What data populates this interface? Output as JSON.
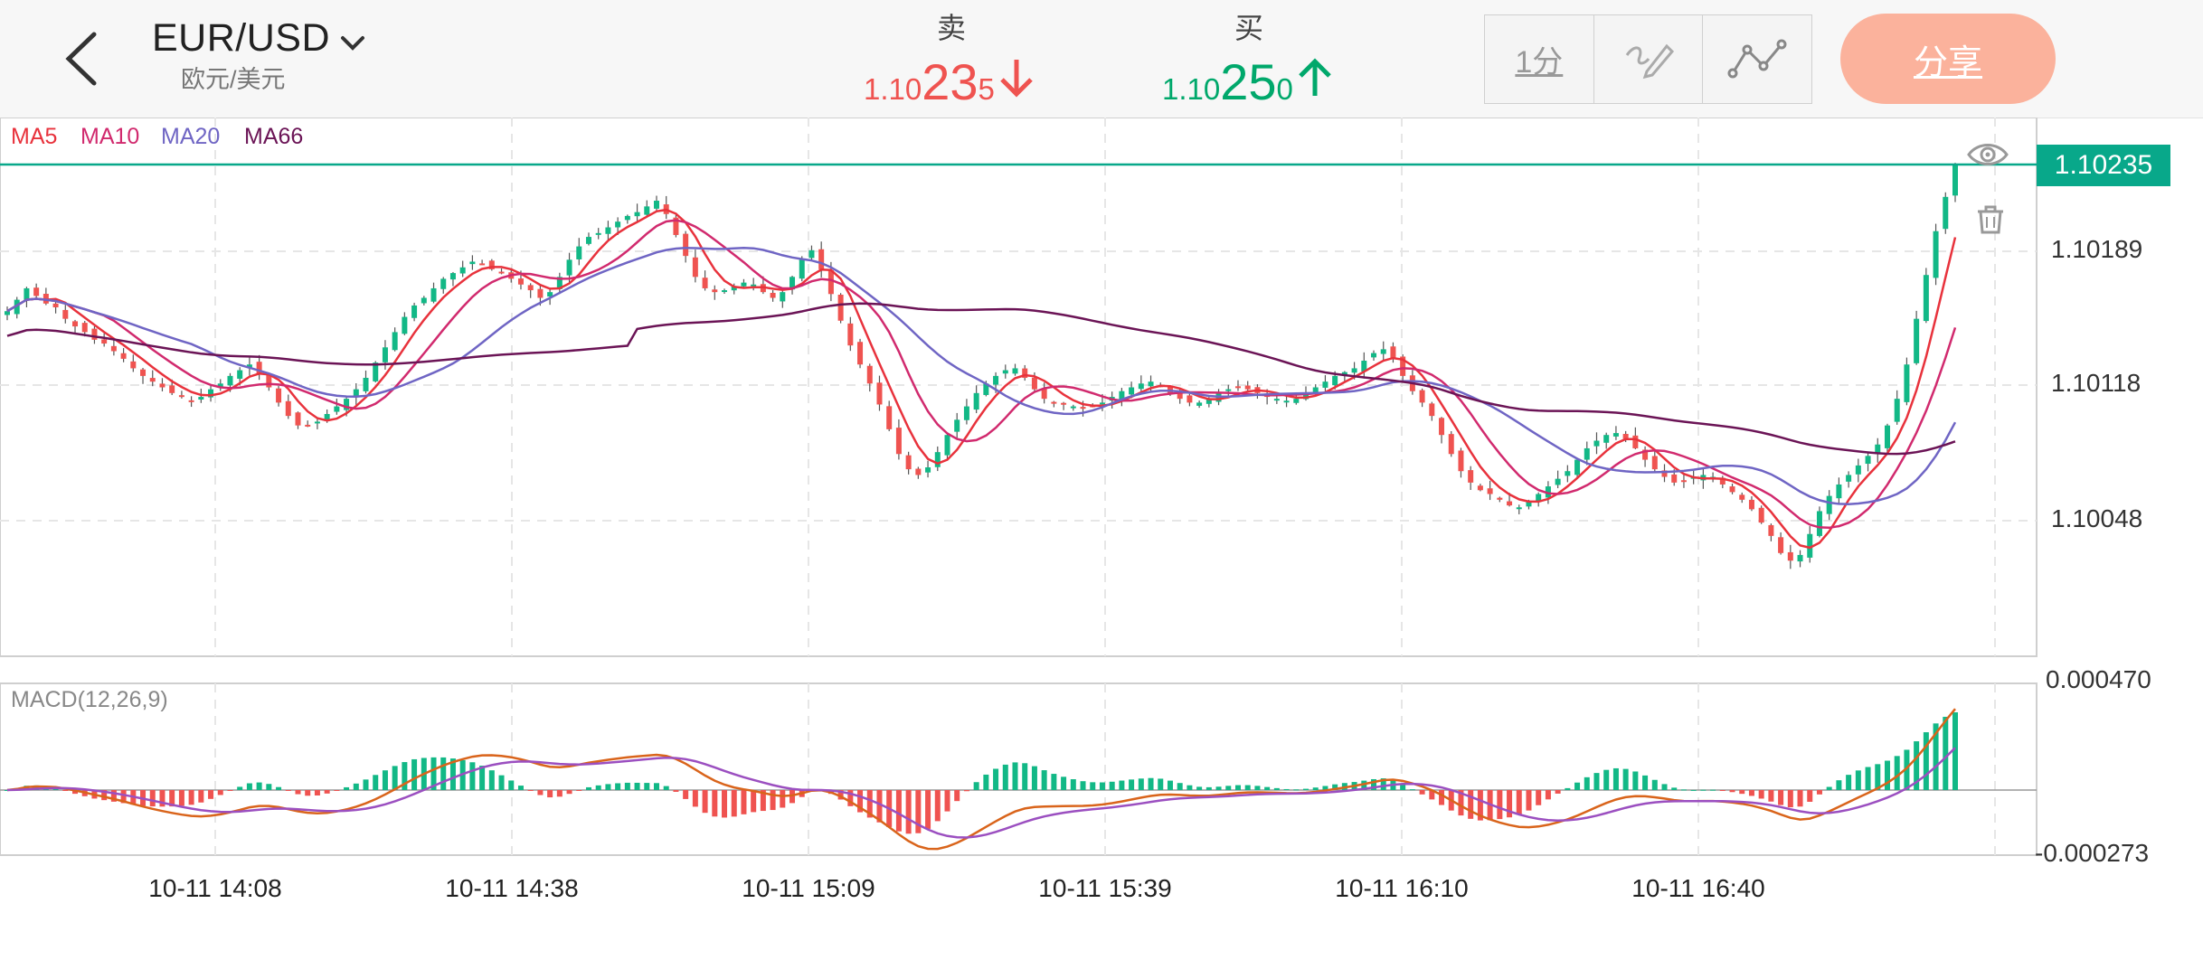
{
  "header": {
    "pair": "EUR/USD",
    "pair_sub": "欧元/美元",
    "sell_label": "卖",
    "buy_label": "买",
    "sell": {
      "small": "1.10",
      "big": "23",
      "tail": "5"
    },
    "buy": {
      "small": "1.10",
      "big": "25",
      "tail": "0"
    },
    "timeframe": "1分",
    "share": "分享"
  },
  "colors": {
    "up": "#12b886",
    "down": "#ef5350",
    "ma5": "#e8323c",
    "ma10": "#d12a6e",
    "ma20": "#6f65c4",
    "ma66": "#6b1456",
    "macd_line": "#d9641b",
    "signal_line": "#9b4fc0",
    "price_line": "#08a88a",
    "share": "#fbb29c"
  },
  "chart_data": {
    "type": "candlestick",
    "instrument": "EUR/USD",
    "interval": "1分",
    "legend": [
      "MA5",
      "MA10",
      "MA20",
      "MA66"
    ],
    "current_price": "1.10235",
    "y_ticks": [
      "1.10189",
      "1.10118",
      "1.10048"
    ],
    "ylim": [
      1.0997,
      1.1026
    ],
    "x_ticks": [
      "10-11 14:08",
      "10-11 14:38",
      "10-11 15:09",
      "10-11 15:39",
      "10-11 16:10",
      "10-11 16:40"
    ],
    "candle_count": 200,
    "close": [
      1.10158,
      1.10164,
      1.1017,
      1.10166,
      1.10162,
      1.1016,
      1.10154,
      1.1015,
      1.10147,
      1.10143,
      1.10141,
      1.10137,
      1.10133,
      1.10128,
      1.10124,
      1.10121,
      1.10118,
      1.10115,
      1.10113,
      1.10111,
      1.10113,
      1.10117,
      1.1012,
      1.10124,
      1.10127,
      1.1013,
      1.10125,
      1.10118,
      1.1011,
      1.10103,
      1.10098,
      1.10098,
      1.101,
      1.10104,
      1.10108,
      1.10112,
      1.10117,
      1.10123,
      1.10131,
      1.10139,
      1.10147,
      1.10155,
      1.10161,
      1.10165,
      1.1017,
      1.10175,
      1.10178,
      1.10181,
      1.10184,
      1.10183,
      1.1018,
      1.10178,
      1.10175,
      1.10172,
      1.10169,
      1.10165,
      1.10168,
      1.10176,
      1.10185,
      1.10192,
      1.10197,
      1.10199,
      1.10202,
      1.10205,
      1.10208,
      1.1021,
      1.10213,
      1.10216,
      1.10209,
      1.10198,
      1.10187,
      1.10176,
      1.1017,
      1.10168,
      1.10169,
      1.10171,
      1.10173,
      1.10172,
      1.10168,
      1.10165,
      1.10168,
      1.10176,
      1.10185,
      1.1019,
      1.1018,
      1.10167,
      1.10153,
      1.1014,
      1.1013,
      1.1012,
      1.10109,
      1.10096,
      1.10083,
      1.10075,
      1.10072,
      1.10076,
      1.10084,
      1.10093,
      1.10101,
      1.10108,
      1.10115,
      1.1012,
      1.10124,
      1.10127,
      1.10128,
      1.10123,
      1.10117,
      1.10112,
      1.1011,
      1.10109,
      1.10108,
      1.10107,
      1.10108,
      1.1011,
      1.10113,
      1.10116,
      1.10118,
      1.1012,
      1.10121,
      1.10119,
      1.10115,
      1.10112,
      1.1011,
      1.1011,
      1.10112,
      1.10115,
      1.10117,
      1.10118,
      1.10117,
      1.10115,
      1.10113,
      1.10112,
      1.10111,
      1.10112,
      1.10115,
      1.10118,
      1.10121,
      1.10124,
      1.10126,
      1.10128,
      1.10132,
      1.10136,
      1.10138,
      1.10133,
      1.10124,
      1.10116,
      1.1011,
      1.10103,
      1.10093,
      1.10083,
      1.10074,
      1.10068,
      1.10064,
      1.10062,
      1.10059,
      1.10056,
      1.10055,
      1.10058,
      1.10062,
      1.10066,
      1.1007,
      1.10074,
      1.1008,
      1.10086,
      1.1009,
      1.10093,
      1.10094,
      1.10091,
      1.10086,
      1.1008,
      1.10075,
      1.10071,
      1.10068,
      1.10069,
      1.10071,
      1.10072,
      1.10071,
      1.10067,
      1.10063,
      1.10059,
      1.10054,
      1.10047,
      1.1004,
      1.10031,
      1.10027,
      1.1003,
      1.10041,
      1.10053,
      1.10061,
      1.10067,
      1.10072,
      1.10077,
      1.10082,
      1.10088,
      1.10098,
      1.10112,
      1.1013,
      1.10154,
      1.10177,
      1.102,
      1.10218,
      1.10235
    ],
    "ma_periods": [
      5,
      10,
      20,
      66
    ],
    "macd": {
      "title": "MACD(12,26,9)",
      "y_ticks": [
        "0.000470",
        "-0.000273"
      ],
      "ylim": [
        -0.000273,
        0.00047
      ],
      "fast": 12,
      "slow": 26,
      "signal": 9
    }
  }
}
